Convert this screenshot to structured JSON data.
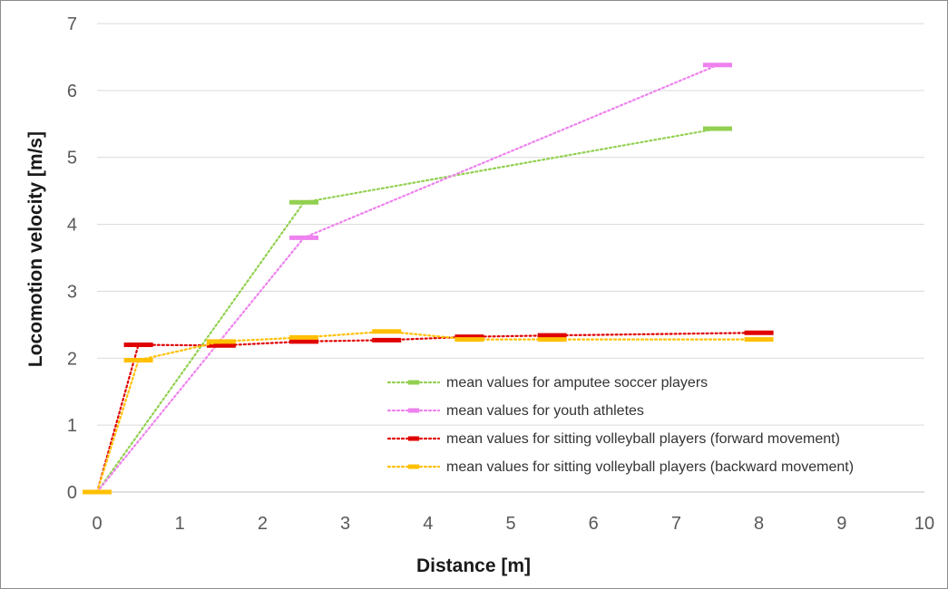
{
  "chart_data": {
    "type": "line",
    "title": "",
    "xlabel": "Distance [m]",
    "ylabel": "Locomotion velocity [m/s]",
    "xlim": [
      0,
      10
    ],
    "ylim": [
      0,
      7
    ],
    "xticks": [
      "0",
      "1",
      "2",
      "3",
      "4",
      "5",
      "6",
      "7",
      "8",
      "9",
      "10"
    ],
    "yticks": [
      "0",
      "1",
      "2",
      "3",
      "4",
      "5",
      "6",
      "7"
    ],
    "grid": "horizontal",
    "legend_position": "bottom-right",
    "series": [
      {
        "name": "mean values for amputee soccer players",
        "color": "#92d050",
        "x": [
          0,
          2.5,
          7.5
        ],
        "y": [
          0,
          4.33,
          5.43
        ]
      },
      {
        "name": "mean values for youth athletes",
        "color": "#ee82ee",
        "x": [
          0,
          2.5,
          7.5
        ],
        "y": [
          0,
          3.8,
          6.38
        ]
      },
      {
        "name": "mean values for sitting volleyball players (forward movement)",
        "color": "#e00000",
        "x": [
          0,
          0.5,
          1.5,
          2.5,
          3.5,
          4.5,
          5.5,
          8
        ],
        "y": [
          0,
          2.2,
          2.19,
          2.25,
          2.27,
          2.32,
          2.34,
          2.38
        ]
      },
      {
        "name": "mean values for sitting volleyball players (backward movement)",
        "color": "#ffc000",
        "x": [
          0,
          0.5,
          1.5,
          2.5,
          3.5,
          4.5,
          5.5,
          8
        ],
        "y": [
          0,
          1.97,
          2.25,
          2.31,
          2.4,
          2.28,
          2.28,
          2.28
        ]
      }
    ]
  }
}
